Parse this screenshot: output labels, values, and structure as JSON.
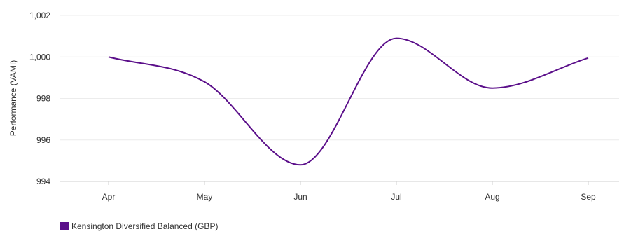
{
  "chart_data": {
    "type": "line",
    "smooth": true,
    "categories": [
      "Apr",
      "May",
      "Jun",
      "Jul",
      "Aug",
      "Sep"
    ],
    "series": [
      {
        "name": "Kensington Diversified Balanced (GBP)",
        "color": "#5b0f8a",
        "values": [
          1000.0,
          998.8,
          994.8,
          1000.9,
          998.5,
          999.95
        ]
      }
    ],
    "ylabel": "Performance (VAMI)",
    "xlabel": "",
    "ylim": [
      994,
      1002
    ],
    "yticks": [
      994,
      996,
      998,
      1000,
      1002
    ],
    "ytick_labels": [
      "994",
      "996",
      "998",
      "1,000",
      "1,002"
    ],
    "grid": true,
    "legend_position": "bottom-left"
  }
}
